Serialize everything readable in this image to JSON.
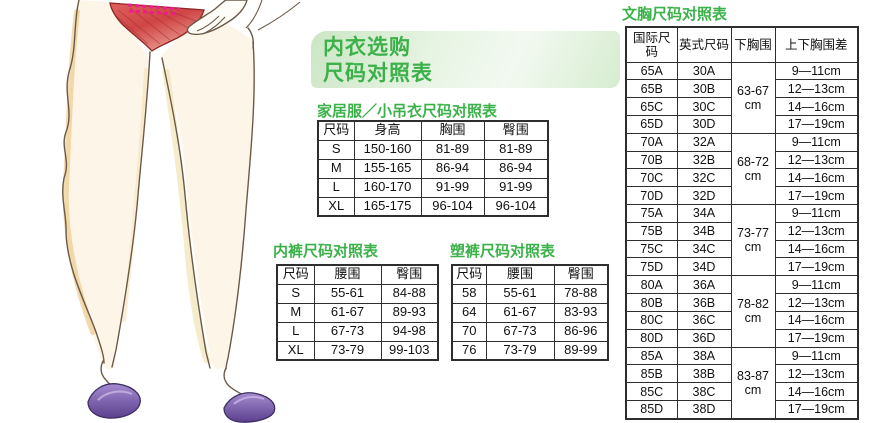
{
  "colors": {
    "title_green": "#3cb14a",
    "banner_green_light": "#d5ebd0",
    "table_border": "#2e2e2e",
    "panty_red": "#cc4444",
    "stitch_magenta": "#ec1e8c",
    "shoe_purple": "#6f55a8",
    "skin_cream": "#fdf6e8"
  },
  "main_title": {
    "line1": "内衣选购",
    "line2": "尺码对照表"
  },
  "illustration": {
    "description": "手绘插画：穿红色内裤与紫色高跟鞋的女性双腿"
  },
  "tables": {
    "homewear": {
      "title": "家居服／小吊衣尺码对照表",
      "headers": [
        "尺码",
        "身高",
        "胸围",
        "臀围"
      ],
      "rows": [
        [
          "S",
          "150-160",
          "81-89",
          "81-89"
        ],
        [
          "M",
          "155-165",
          "86-94",
          "86-94"
        ],
        [
          "L",
          "160-170",
          "91-99",
          "91-99"
        ],
        [
          "XL",
          "165-175",
          "96-104",
          "96-104"
        ]
      ]
    },
    "panties": {
      "title": "内裤尺码对照表",
      "headers": [
        "尺码",
        "腰围",
        "臀围"
      ],
      "rows": [
        [
          "S",
          "55-61",
          "84-88"
        ],
        [
          "M",
          "61-67",
          "89-93"
        ],
        [
          "L",
          "67-73",
          "94-98"
        ],
        [
          "XL",
          "73-79",
          "99-103"
        ]
      ]
    },
    "shaping": {
      "title": "塑裤尺码对照表",
      "headers": [
        "尺码",
        "腰围",
        "臀围"
      ],
      "rows": [
        [
          "58",
          "55-61",
          "78-88"
        ],
        [
          "64",
          "61-67",
          "83-93"
        ],
        [
          "70",
          "67-73",
          "86-96"
        ],
        [
          "76",
          "73-79",
          "89-99"
        ]
      ]
    },
    "bra": {
      "title": "文胸尺码对照表",
      "headers": [
        "国际尺码",
        "英式尺码",
        "下胸围",
        "上下胸围差"
      ],
      "groups": [
        {
          "underbust": {
            "range": "63-67",
            "unit": "cm"
          },
          "rows": [
            [
              "65A",
              "30A",
              "9—11cm"
            ],
            [
              "65B",
              "30B",
              "12—13cm"
            ],
            [
              "65C",
              "30C",
              "14—16cm"
            ],
            [
              "65D",
              "30D",
              "17—19cm"
            ]
          ]
        },
        {
          "underbust": {
            "range": "68-72",
            "unit": "cm"
          },
          "rows": [
            [
              "70A",
              "32A",
              "9—11cm"
            ],
            [
              "70B",
              "32B",
              "12—13cm"
            ],
            [
              "70C",
              "32C",
              "14—16cm"
            ],
            [
              "70D",
              "32D",
              "17—19cm"
            ]
          ]
        },
        {
          "underbust": {
            "range": "73-77",
            "unit": "cm"
          },
          "rows": [
            [
              "75A",
              "34A",
              "9—11cm"
            ],
            [
              "75B",
              "34B",
              "12—13cm"
            ],
            [
              "75C",
              "34C",
              "14—16cm"
            ],
            [
              "75D",
              "34D",
              "17—19cm"
            ]
          ]
        },
        {
          "underbust": {
            "range": "78-82",
            "unit": "cm"
          },
          "rows": [
            [
              "80A",
              "36A",
              "9—11cm"
            ],
            [
              "80B",
              "36B",
              "12—13cm"
            ],
            [
              "80C",
              "36C",
              "14—16cm"
            ],
            [
              "80D",
              "36D",
              "17—19cm"
            ]
          ]
        },
        {
          "underbust": {
            "range": "83-87",
            "unit": "cm"
          },
          "rows": [
            [
              "85A",
              "38A",
              "9—11cm"
            ],
            [
              "85B",
              "38B",
              "12—13cm"
            ],
            [
              "85C",
              "38C",
              "14—16cm"
            ],
            [
              "85D",
              "38D",
              "17—19cm"
            ]
          ]
        }
      ]
    }
  }
}
